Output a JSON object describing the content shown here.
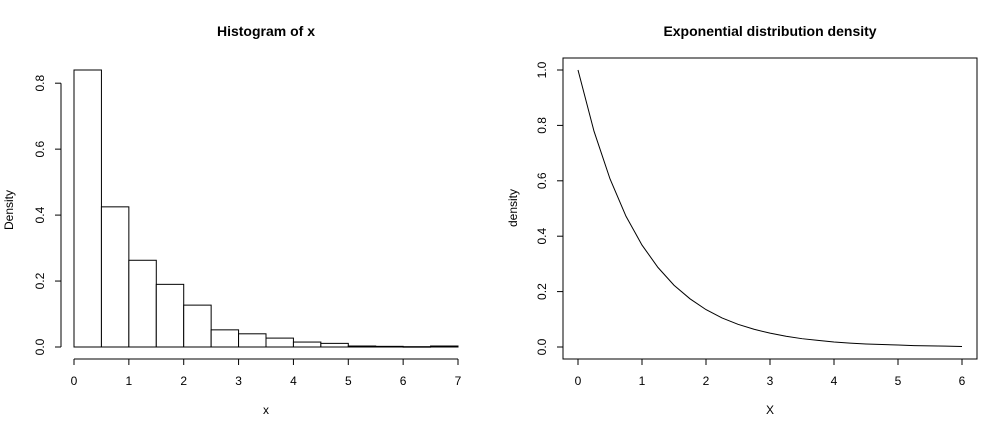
{
  "chart_data": [
    {
      "type": "bar",
      "title": "Histogram of x",
      "xlabel": "x",
      "ylabel": "Density",
      "xlim": [
        0,
        7
      ],
      "ylim": [
        0,
        0.84
      ],
      "xticks": [
        0,
        1,
        2,
        3,
        4,
        5,
        6,
        7
      ],
      "yticks": [
        0.0,
        0.2,
        0.4,
        0.6,
        0.8
      ],
      "ytick_labels": [
        "0.0",
        "0.2",
        "0.4",
        "0.6",
        "0.8"
      ],
      "bins": [
        {
          "x0": 0.0,
          "x1": 0.5,
          "density": 0.84
        },
        {
          "x0": 0.5,
          "x1": 1.0,
          "density": 0.425
        },
        {
          "x0": 1.0,
          "x1": 1.5,
          "density": 0.263
        },
        {
          "x0": 1.5,
          "x1": 2.0,
          "density": 0.19
        },
        {
          "x0": 2.0,
          "x1": 2.5,
          "density": 0.127
        },
        {
          "x0": 2.5,
          "x1": 3.0,
          "density": 0.052
        },
        {
          "x0": 3.0,
          "x1": 3.5,
          "density": 0.04
        },
        {
          "x0": 3.5,
          "x1": 4.0,
          "density": 0.027
        },
        {
          "x0": 4.0,
          "x1": 4.5,
          "density": 0.015
        },
        {
          "x0": 4.5,
          "x1": 5.0,
          "density": 0.011
        },
        {
          "x0": 5.0,
          "x1": 5.5,
          "density": 0.003
        },
        {
          "x0": 5.5,
          "x1": 6.0,
          "density": 0.002
        },
        {
          "x0": 6.0,
          "x1": 6.5,
          "density": 0.001
        },
        {
          "x0": 6.5,
          "x1": 7.0,
          "density": 0.003
        }
      ],
      "grid": false
    },
    {
      "type": "line",
      "title": "Exponential distribution density",
      "xlabel": "X",
      "ylabel": "density",
      "xlim": [
        0,
        6
      ],
      "ylim": [
        0,
        1
      ],
      "xticks": [
        0,
        1,
        2,
        3,
        4,
        5,
        6
      ],
      "yticks": [
        0.0,
        0.2,
        0.4,
        0.6,
        0.8,
        1.0
      ],
      "ytick_labels": [
        "0.0",
        "0.2",
        "0.4",
        "0.6",
        "0.8",
        "1.0"
      ],
      "series": [
        {
          "name": "density",
          "x": [
            0,
            0.25,
            0.5,
            0.75,
            1,
            1.25,
            1.5,
            1.75,
            2,
            2.25,
            2.5,
            2.75,
            3,
            3.25,
            3.5,
            3.75,
            4,
            4.25,
            4.5,
            4.75,
            5,
            5.25,
            5.5,
            5.75,
            6
          ],
          "y": [
            1.0,
            0.779,
            0.607,
            0.472,
            0.368,
            0.287,
            0.223,
            0.174,
            0.135,
            0.105,
            0.082,
            0.064,
            0.05,
            0.039,
            0.03,
            0.024,
            0.018,
            0.014,
            0.011,
            0.009,
            0.007,
            0.005,
            0.004,
            0.003,
            0.002
          ]
        }
      ],
      "grid": false
    }
  ]
}
